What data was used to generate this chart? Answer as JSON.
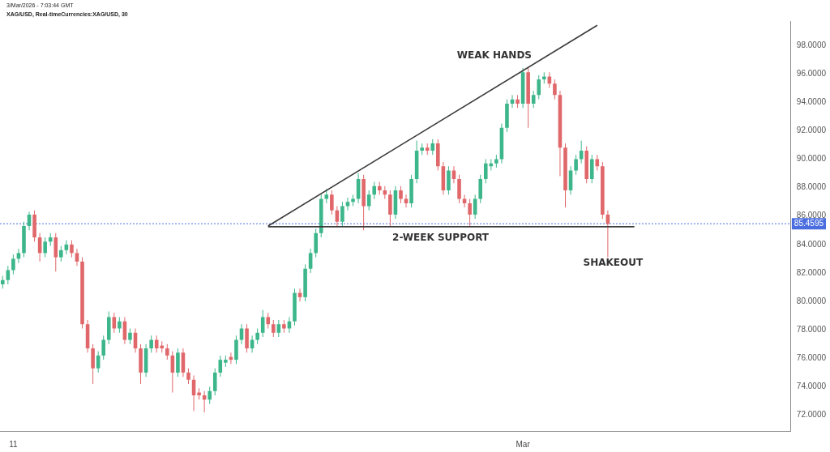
{
  "chart_data": {
    "type": "candlestick",
    "subtitle": "3/Mar/2026 - 7:03:44 GMT",
    "title": "XAG/USD, Real-timeCurrencies:XAG/USD, 30",
    "categories": [
      null,
      null,
      "11",
      null,
      null,
      null,
      null,
      null,
      null,
      null,
      null,
      null,
      null,
      null,
      null,
      null,
      null,
      null,
      null,
      null,
      null,
      null,
      null,
      null,
      null,
      null,
      null,
      null,
      null,
      null,
      null,
      null,
      null,
      null,
      null,
      null,
      null,
      null,
      null,
      null,
      null,
      null,
      null,
      null,
      null,
      null,
      null,
      null,
      null,
      null,
      null,
      null,
      null,
      null,
      null,
      null,
      null,
      null,
      null,
      null,
      null,
      null,
      null,
      null,
      null,
      null,
      null,
      null,
      null,
      null,
      null,
      null,
      null,
      null,
      null,
      null,
      null,
      null,
      null,
      null,
      null,
      null,
      null,
      null,
      null,
      null,
      null,
      null,
      null,
      null,
      null,
      null,
      null,
      null,
      null,
      null,
      null,
      null,
      "Mar",
      null,
      null,
      null,
      null,
      null,
      null,
      null,
      null,
      null,
      null,
      null,
      null,
      null,
      null,
      null,
      null,
      null,
      null,
      null,
      null,
      null,
      null,
      null,
      null,
      null,
      null,
      null,
      null,
      null,
      null,
      null,
      null,
      null,
      null,
      null,
      null,
      null,
      null,
      null,
      null,
      null,
      null,
      null,
      null,
      null,
      null,
      null,
      null,
      null,
      null
    ],
    "colors": [
      "#3cb68a",
      "#3cb68a",
      "#3cb68a",
      "#3cb68a",
      "#3cb68a",
      "#3cb68a",
      "#e0676a",
      "#e0676a",
      "#3cb68a",
      "#3cb68a",
      "#e0676a",
      "#3cb68a",
      "#3cb68a",
      "#e0676a",
      "#e0676a",
      "#e0676a",
      "#e0676a",
      "#e0676a",
      "#3cb68a",
      "#3cb68a",
      "#3cb68a",
      "#e0676a",
      "#3cb68a",
      "#e0676a",
      "#3cb68a",
      "#e0676a",
      "#e0676a",
      "#3cb68a",
      "#3cb68a",
      "#e0676a",
      "#e0676a",
      "#e0676a",
      "#e0676a",
      "#3cb68a",
      "#e0676a",
      "#e0676a",
      "#e0676a",
      "#e0676a",
      "#e0676a",
      "#3cb68a",
      "#3cb68a",
      "#3cb68a",
      "#3cb68a",
      "#e0676a",
      "#3cb68a",
      "#3cb68a",
      "#e0676a",
      "#3cb68a",
      "#3cb68a",
      "#3cb68a",
      "#e0676a",
      "#e0676a",
      "#3cb68a",
      "#e0676a",
      "#3cb68a",
      "#3cb68a",
      "#e0676a",
      "#3cb68a",
      "#3cb68a",
      "#3cb68a",
      "#3cb68a",
      "#3cb68a",
      "#e0676a",
      "#e0676a",
      "#3cb68a",
      "#3cb68a",
      "#3cb68a",
      "#3cb68a",
      "#e0676a",
      "#3cb68a",
      "#3cb68a",
      "#e0676a",
      "#e0676a",
      "#e0676a",
      "#3cb68a",
      "#e0676a",
      "#e0676a",
      "#3cb68a",
      "#3cb68a",
      "#3cb68a",
      "#e0676a",
      "#3cb68a",
      "#e0676a",
      "#e0676a",
      "#3cb68a",
      "#e0676a",
      "#e0676a",
      "#e0676a",
      "#e0676a",
      "#3cb68a",
      "#3cb68a",
      "#3cb68a",
      "#3cb68a",
      "#3cb68a",
      "#3cb68a",
      "#3cb68a",
      "#3cb68a",
      "#e0676a",
      "#3cb68a",
      "#e0676a",
      "#3cb68a",
      "#3cb68a",
      "#3cb68a",
      "#e0676a",
      "#e0676a",
      "#e0676a",
      "#e0676a",
      "#3cb68a",
      "#3cb68a",
      "#3cb68a",
      "#e0676a",
      "#3cb68a",
      "#e0676a",
      "#e0676a",
      "#e0676a",
      null,
      null,
      null,
      null,
      null,
      null,
      null,
      null,
      null,
      null,
      null,
      null,
      null,
      null,
      null,
      null,
      null,
      null,
      null,
      null,
      null,
      null,
      null,
      null,
      null,
      null,
      null,
      null,
      null,
      null,
      null,
      null,
      null,
      null
    ],
    "ohlc": [
      [
        81.2,
        81.8,
        80.9,
        81.5
      ],
      [
        81.5,
        82.5,
        81.2,
        82.2
      ],
      [
        82.2,
        83.3,
        81.9,
        83.0
      ],
      [
        83.0,
        83.7,
        82.7,
        83.4
      ],
      [
        83.4,
        85.6,
        83.1,
        85.3
      ],
      [
        85.3,
        86.3,
        85.0,
        86.1
      ],
      [
        86.1,
        86.4,
        84.2,
        84.5
      ],
      [
        84.5,
        84.8,
        82.8,
        83.4
      ],
      [
        83.4,
        84.5,
        83.1,
        84.2
      ],
      [
        84.2,
        84.8,
        83.9,
        84.5
      ],
      [
        84.5,
        84.8,
        82.1,
        83.1
      ],
      [
        83.1,
        83.9,
        82.8,
        83.6
      ],
      [
        83.6,
        84.3,
        83.3,
        84.0
      ],
      [
        84.0,
        84.3,
        83.1,
        83.4
      ],
      [
        83.4,
        83.7,
        82.5,
        82.8
      ],
      [
        82.8,
        83.1,
        78.1,
        78.4
      ],
      [
        78.4,
        78.7,
        76.4,
        76.7
      ],
      [
        76.7,
        77.0,
        74.2,
        75.3
      ],
      [
        75.3,
        76.5,
        75.0,
        76.2
      ],
      [
        76.2,
        77.6,
        75.9,
        77.3
      ],
      [
        77.3,
        79.3,
        77.0,
        78.9
      ],
      [
        78.9,
        79.2,
        77.8,
        78.1
      ],
      [
        78.1,
        78.9,
        77.8,
        78.6
      ],
      [
        78.6,
        78.9,
        77.0,
        77.3
      ],
      [
        77.3,
        78.1,
        77.0,
        77.8
      ],
      [
        77.8,
        78.1,
        76.4,
        76.7
      ],
      [
        76.7,
        77.0,
        74.2,
        75.0
      ],
      [
        75.0,
        77.0,
        74.7,
        76.7
      ],
      [
        76.7,
        77.6,
        76.4,
        77.3
      ],
      [
        77.3,
        77.6,
        76.4,
        76.7
      ],
      [
        76.9,
        77.2,
        76.4,
        76.7
      ],
      [
        76.7,
        77.0,
        75.9,
        76.2
      ],
      [
        76.2,
        76.5,
        73.6,
        75.0
      ],
      [
        75.0,
        76.7,
        74.7,
        76.4
      ],
      [
        76.4,
        76.7,
        74.7,
        75.0
      ],
      [
        75.0,
        75.3,
        74.2,
        74.5
      ],
      [
        74.5,
        74.8,
        72.3,
        73.4
      ],
      [
        73.6,
        73.9,
        73.1,
        73.4
      ],
      [
        73.4,
        73.7,
        72.2,
        73.1
      ],
      [
        73.1,
        74.0,
        72.8,
        73.7
      ],
      [
        73.7,
        75.3,
        73.4,
        75.0
      ],
      [
        75.0,
        76.2,
        74.7,
        75.9
      ],
      [
        75.7,
        76.2,
        75.4,
        75.9
      ],
      [
        76.1,
        76.4,
        75.6,
        75.9
      ],
      [
        75.9,
        77.6,
        75.6,
        77.3
      ],
      [
        77.3,
        78.4,
        77.0,
        78.1
      ],
      [
        78.1,
        78.4,
        76.4,
        76.7
      ],
      [
        76.7,
        77.6,
        76.4,
        77.3
      ],
      [
        77.3,
        78.1,
        77.0,
        77.8
      ],
      [
        77.8,
        79.4,
        77.5,
        78.9
      ],
      [
        78.9,
        79.2,
        78.1,
        78.4
      ],
      [
        78.4,
        78.7,
        77.5,
        77.8
      ],
      [
        77.8,
        78.7,
        77.5,
        78.4
      ],
      [
        78.4,
        78.7,
        77.8,
        78.1
      ],
      [
        78.1,
        78.9,
        77.8,
        78.6
      ],
      [
        78.6,
        80.9,
        78.3,
        80.6
      ],
      [
        80.6,
        80.9,
        80.0,
        80.3
      ],
      [
        80.3,
        82.6,
        80.0,
        82.3
      ],
      [
        82.3,
        83.7,
        82.0,
        83.4
      ],
      [
        83.4,
        85.1,
        83.1,
        84.8
      ],
      [
        84.8,
        87.5,
        84.5,
        87.2
      ],
      [
        87.2,
        87.9,
        86.9,
        87.5
      ],
      [
        87.5,
        87.8,
        86.1,
        86.4
      ],
      [
        86.4,
        86.7,
        85.2,
        85.6
      ],
      [
        85.6,
        87.0,
        85.3,
        86.7
      ],
      [
        86.7,
        87.3,
        86.4,
        87.0
      ],
      [
        87.0,
        87.5,
        86.7,
        87.2
      ],
      [
        87.2,
        89.0,
        86.9,
        88.6
      ],
      [
        88.6,
        88.9,
        85.0,
        86.7
      ],
      [
        86.7,
        87.8,
        86.4,
        87.5
      ],
      [
        87.5,
        88.4,
        87.2,
        88.1
      ],
      [
        88.1,
        88.4,
        87.5,
        87.8
      ],
      [
        87.8,
        88.1,
        87.2,
        87.5
      ],
      [
        87.5,
        87.8,
        85.3,
        86.1
      ],
      [
        86.1,
        88.1,
        85.8,
        87.8
      ],
      [
        87.8,
        88.1,
        86.9,
        87.2
      ],
      [
        87.2,
        87.5,
        86.6,
        86.9
      ],
      [
        86.9,
        88.9,
        86.6,
        88.6
      ],
      [
        88.6,
        91.3,
        88.3,
        90.6
      ],
      [
        90.6,
        91.1,
        90.3,
        90.8
      ],
      [
        90.8,
        91.1,
        90.3,
        90.6
      ],
      [
        90.6,
        91.4,
        90.3,
        91.1
      ],
      [
        91.1,
        91.4,
        89.2,
        89.5
      ],
      [
        89.5,
        89.8,
        87.5,
        87.8
      ],
      [
        87.8,
        89.5,
        87.5,
        89.2
      ],
      [
        89.2,
        89.5,
        88.3,
        88.6
      ],
      [
        88.6,
        88.9,
        86.9,
        87.2
      ],
      [
        87.2,
        87.5,
        86.6,
        86.9
      ],
      [
        86.9,
        87.2,
        85.3,
        86.1
      ],
      [
        86.1,
        87.5,
        85.8,
        87.2
      ],
      [
        87.2,
        88.9,
        86.9,
        88.6
      ],
      [
        88.6,
        90.0,
        88.3,
        89.7
      ],
      [
        89.5,
        90.0,
        89.2,
        89.7
      ],
      [
        89.7,
        90.3,
        89.4,
        90.0
      ],
      [
        90.0,
        92.5,
        89.7,
        92.2
      ],
      [
        92.2,
        94.2,
        91.9,
        93.9
      ],
      [
        93.9,
        94.5,
        93.6,
        94.2
      ],
      [
        94.2,
        94.5,
        93.6,
        93.9
      ],
      [
        93.9,
        96.4,
        93.6,
        96.1
      ],
      [
        96.1,
        96.4,
        92.2,
        93.9
      ],
      [
        93.9,
        94.8,
        93.6,
        94.5
      ],
      [
        94.5,
        95.9,
        94.2,
        95.6
      ],
      [
        95.6,
        96.1,
        95.3,
        95.8
      ],
      [
        95.8,
        96.1,
        95.0,
        95.3
      ],
      [
        95.3,
        95.6,
        94.2,
        94.5
      ],
      [
        94.5,
        94.8,
        88.8,
        90.8
      ],
      [
        90.8,
        91.1,
        86.6,
        87.8
      ],
      [
        87.8,
        89.5,
        87.5,
        89.2
      ],
      [
        89.2,
        90.3,
        88.9,
        90.0
      ],
      [
        90.0,
        91.3,
        89.7,
        90.6
      ],
      [
        90.6,
        90.9,
        88.3,
        88.6
      ],
      [
        88.6,
        90.3,
        88.3,
        90.0
      ],
      [
        90.0,
        90.3,
        89.2,
        89.5
      ],
      [
        89.5,
        89.8,
        85.8,
        86.1
      ],
      [
        86.1,
        86.4,
        83.1,
        85.46
      ],
      null,
      null,
      null,
      null,
      null,
      null,
      null,
      null,
      null,
      null,
      null,
      null,
      null,
      null,
      null,
      null,
      null,
      null,
      null,
      null,
      null,
      null,
      null,
      null,
      null,
      null,
      null,
      null,
      null,
      null,
      null,
      null,
      null,
      null
    ],
    "series": [
      {
        "type": "line",
        "color": "#3a3a3a",
        "values": [
          null,
          null,
          null,
          null,
          null,
          null,
          null,
          null,
          null,
          null,
          null,
          null,
          null,
          null,
          null,
          null,
          null,
          null,
          null,
          null,
          null,
          null,
          null,
          null,
          null,
          null,
          null,
          null,
          null,
          null,
          null,
          null,
          null,
          null,
          null,
          null,
          null,
          null,
          null,
          null,
          null,
          null,
          null,
          null,
          null,
          null,
          null,
          null,
          null,
          null,
          85.3,
          null,
          null,
          null,
          null,
          null,
          null,
          null,
          null,
          null,
          null,
          null,
          null,
          null,
          null,
          null,
          null,
          null,
          null,
          null,
          null,
          null,
          null,
          null,
          null,
          null,
          null,
          null,
          null,
          null,
          null,
          null,
          null,
          null,
          null,
          null,
          null,
          null,
          null,
          null,
          null,
          null,
          null,
          null,
          null,
          null,
          null,
          null,
          null,
          null,
          null,
          null,
          null,
          null,
          null,
          null,
          null,
          null,
          null,
          null,
          null,
          null,
          99.4,
          null,
          null,
          null,
          null,
          null,
          null,
          null,
          null,
          null,
          null,
          null,
          null,
          null,
          null,
          null,
          null,
          null,
          null,
          null,
          null,
          null,
          null,
          null,
          null,
          null,
          null,
          null,
          null,
          null,
          null,
          null,
          null,
          null,
          null,
          null,
          null
        ]
      },
      {
        "type": "line",
        "color": "#3a3a3a",
        "values": [
          null,
          null,
          null,
          null,
          null,
          null,
          null,
          null,
          null,
          null,
          null,
          null,
          null,
          null,
          null,
          null,
          null,
          null,
          null,
          null,
          null,
          null,
          null,
          null,
          null,
          null,
          null,
          null,
          null,
          null,
          null,
          null,
          null,
          null,
          null,
          null,
          null,
          null,
          null,
          null,
          null,
          null,
          null,
          null,
          null,
          null,
          null,
          null,
          null,
          null,
          85.25,
          null,
          null,
          null,
          null,
          null,
          null,
          null,
          null,
          null,
          null,
          null,
          null,
          null,
          null,
          null,
          null,
          null,
          null,
          null,
          null,
          null,
          null,
          null,
          null,
          null,
          null,
          null,
          null,
          null,
          null,
          null,
          null,
          null,
          null,
          null,
          null,
          null,
          null,
          null,
          null,
          null,
          null,
          null,
          null,
          null,
          null,
          null,
          null,
          null,
          null,
          null,
          null,
          null,
          null,
          null,
          null,
          null,
          null,
          null,
          null,
          null,
          null,
          null,
          null,
          null,
          null,
          null,
          null,
          85.25,
          null,
          null,
          null,
          null,
          null,
          null,
          null,
          null,
          null,
          null,
          null,
          null,
          null,
          null,
          null,
          null,
          null,
          null,
          null,
          null,
          null,
          null,
          null,
          null,
          null,
          null,
          null,
          null,
          null
        ]
      }
    ],
    "ylim": [
      70.9,
      99.7
    ],
    "yticks": [
      {
        "value": 72,
        "label": "72.0000"
      },
      {
        "value": 74,
        "label": "74.0000"
      },
      {
        "value": 76,
        "label": "76.0000"
      },
      {
        "value": 78,
        "label": "78.0000"
      },
      {
        "value": 80,
        "label": "80.0000"
      },
      {
        "value": 82,
        "label": "82.0000"
      },
      {
        "value": 84,
        "label": "84.0000"
      },
      {
        "value": 86,
        "label": "86.0000"
      },
      {
        "value": 88,
        "label": "88.0000"
      },
      {
        "value": 90,
        "label": "90.0000"
      },
      {
        "value": 92,
        "label": "92.0000"
      },
      {
        "value": 94,
        "label": "94.0000"
      },
      {
        "value": 96,
        "label": "96.0000"
      },
      {
        "value": 98,
        "label": "98.0000"
      }
    ],
    "ref_lines": [
      {
        "axis": "y",
        "value": 85.4595,
        "label": "85.4595",
        "color": "#4a6ee0",
        "line_style": "dotted"
      }
    ],
    "annotations": [
      "WEAK HANDS",
      "2-WEEK SUPPORT",
      "SHAKEOUT"
    ]
  }
}
